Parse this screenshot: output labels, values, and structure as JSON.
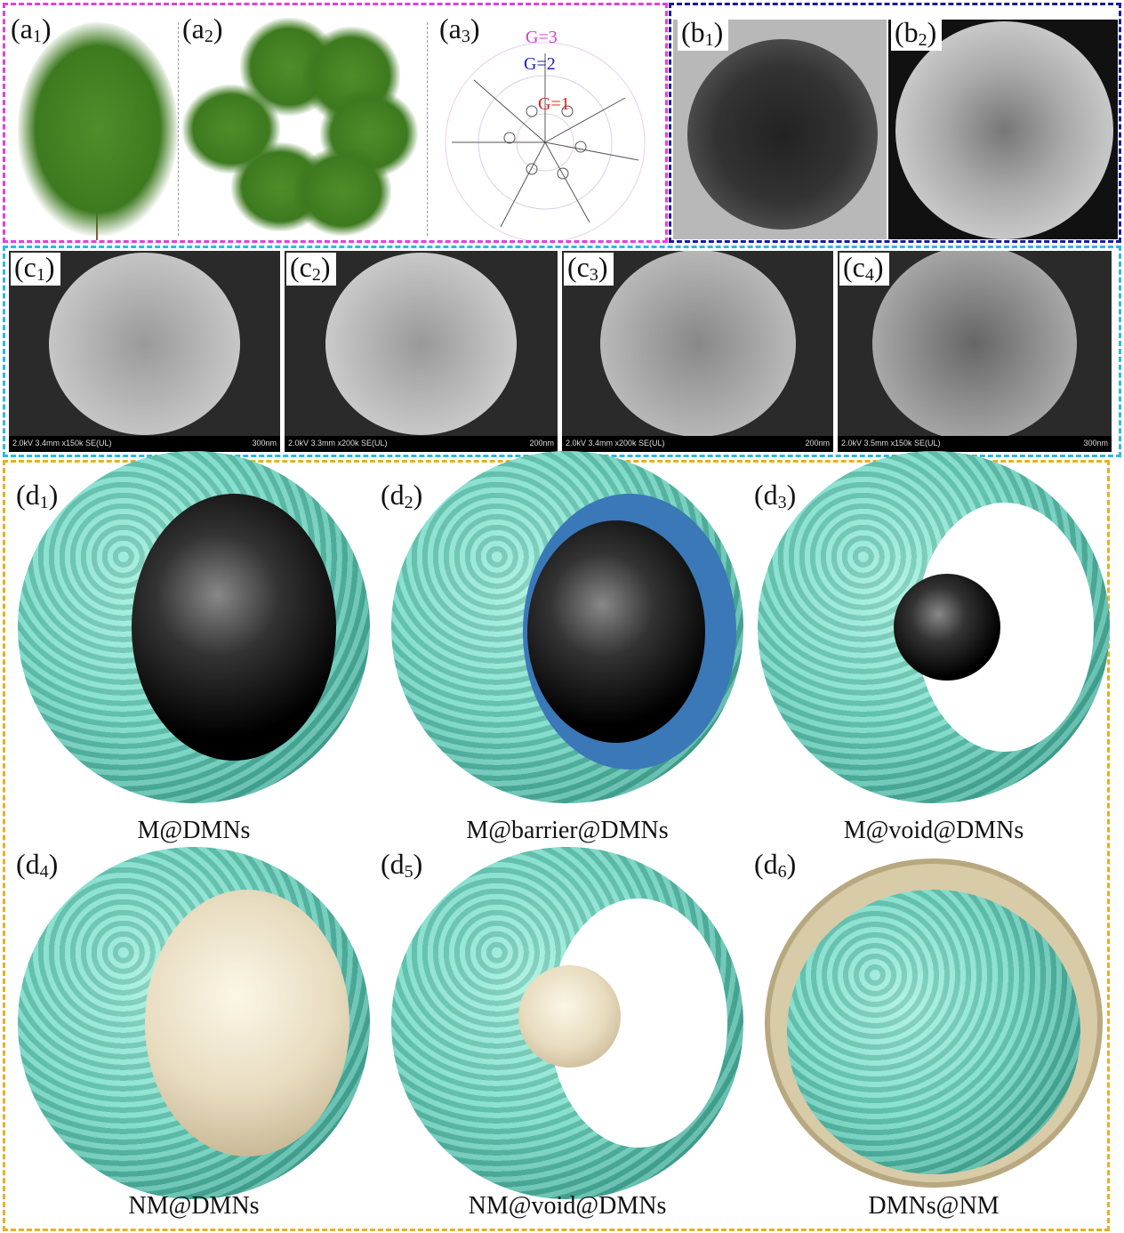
{
  "colors": {
    "a_border": "#e040e0",
    "b_border": "#1a1aa0",
    "c_border": "#30b8e0",
    "d_border": "#e8b020",
    "shell": "#6fd9c4",
    "magnetic_core": "#111111",
    "nonmagnetic_core": "#e8dcc0",
    "barrier": "#3a78b8"
  },
  "panel_a": {
    "labels": [
      {
        "m": "a",
        "s": "1"
      },
      {
        "m": "a",
        "s": "2"
      },
      {
        "m": "a",
        "s": "3"
      }
    ],
    "generations": [
      {
        "text": "G=3",
        "color": "#d040d0"
      },
      {
        "text": "G=2",
        "color": "#2020b0"
      },
      {
        "text": "G=1",
        "color": "#e02020"
      }
    ]
  },
  "panel_b": {
    "labels": [
      {
        "m": "b",
        "s": "1"
      },
      {
        "m": "b",
        "s": "2"
      }
    ]
  },
  "panel_c": {
    "images": [
      {
        "m": "c",
        "s": "1",
        "caption": "2.0kV 3.4mm x150k SE(UL)",
        "scale": "300nm"
      },
      {
        "m": "c",
        "s": "2",
        "caption": "2.0kV 3.3mm x200k SE(UL)",
        "scale": "200nm"
      },
      {
        "m": "c",
        "s": "3",
        "caption": "2.0kV 3.4mm x200k SE(UL)",
        "scale": "200nm"
      },
      {
        "m": "c",
        "s": "4",
        "caption": "2.0kV 3.5mm x150k SE(UL)",
        "scale": "300nm"
      }
    ]
  },
  "panel_d": {
    "items": [
      {
        "m": "d",
        "s": "1",
        "name": "M@DMNs",
        "core": "magnetic"
      },
      {
        "m": "d",
        "s": "2",
        "name": "M@barrier@DMNs",
        "core": "magnetic-barrier"
      },
      {
        "m": "d",
        "s": "3",
        "name": "M@void@DMNs",
        "core": "magnetic-void"
      },
      {
        "m": "d",
        "s": "4",
        "name": "NM@DMNs",
        "core": "nonmagnetic"
      },
      {
        "m": "d",
        "s": "5",
        "name": "NM@void@DMNs",
        "core": "nonmagnetic-void"
      },
      {
        "m": "d",
        "s": "6",
        "name": "DMNs@NM",
        "core": "shell-outside"
      }
    ]
  }
}
